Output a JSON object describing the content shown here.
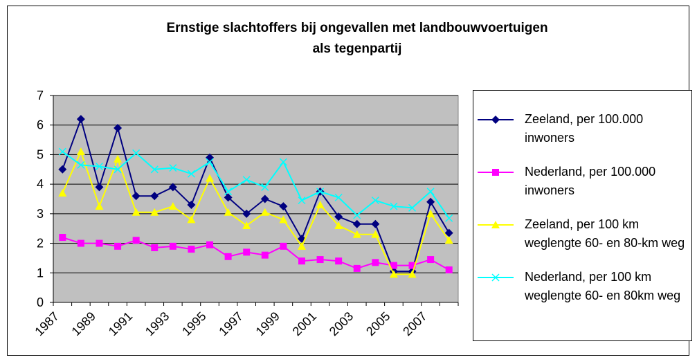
{
  "chart_data": {
    "type": "line",
    "title": "Ernstige slachtoffers bij ongevallen met landbouwvoertuigen als tegenpartij",
    "categories": [
      "1987",
      null,
      "1989",
      null,
      "1991",
      null,
      "1993",
      null,
      "1995",
      null,
      "1997",
      null,
      "1999",
      null,
      "2001",
      null,
      "2003",
      null,
      "2005",
      null,
      "2007",
      null
    ],
    "ylim": [
      0,
      7
    ],
    "yticks": [
      0,
      1,
      2,
      3,
      4,
      5,
      6,
      7
    ],
    "grid": true,
    "background": "#c0c0c0",
    "series": [
      {
        "name": "Zeeland, per 100.000 inwoners",
        "color": "#000080",
        "marker": "diamond",
        "values": [
          4.5,
          6.2,
          3.9,
          5.9,
          3.6,
          3.6,
          3.9,
          3.3,
          4.9,
          3.55,
          3.0,
          3.5,
          3.25,
          2.15,
          3.75,
          2.9,
          2.65,
          2.65,
          1.05,
          1.05,
          3.4,
          2.35
        ]
      },
      {
        "name": "Nederland, per 100.000 inwoners",
        "color": "#ff00ff",
        "marker": "square",
        "values": [
          2.2,
          2.0,
          2.0,
          1.9,
          2.1,
          1.85,
          1.9,
          1.8,
          1.95,
          1.55,
          1.7,
          1.6,
          1.9,
          1.4,
          1.45,
          1.4,
          1.15,
          1.35,
          1.25,
          1.25,
          1.45,
          1.1
        ]
      },
      {
        "name": "Zeeland, per 100 km weglengte 60- en 80-km weg",
        "color": "#ffff00",
        "marker": "triangle",
        "values": [
          3.7,
          5.1,
          3.25,
          4.85,
          3.05,
          3.05,
          3.25,
          2.8,
          4.2,
          3.05,
          2.6,
          3.05,
          2.8,
          1.9,
          3.3,
          2.6,
          2.3,
          2.3,
          0.95,
          0.95,
          3.0,
          2.1
        ]
      },
      {
        "name": "Nederland, per 100 km weglengte 60- en 80km weg",
        "color": "#00ffff",
        "marker": "x",
        "values": [
          5.1,
          4.65,
          4.6,
          4.5,
          5.05,
          4.5,
          4.55,
          4.35,
          4.75,
          3.75,
          4.15,
          3.9,
          4.75,
          3.45,
          3.75,
          3.55,
          2.95,
          3.45,
          3.25,
          3.2,
          3.75,
          2.85
        ]
      }
    ]
  }
}
